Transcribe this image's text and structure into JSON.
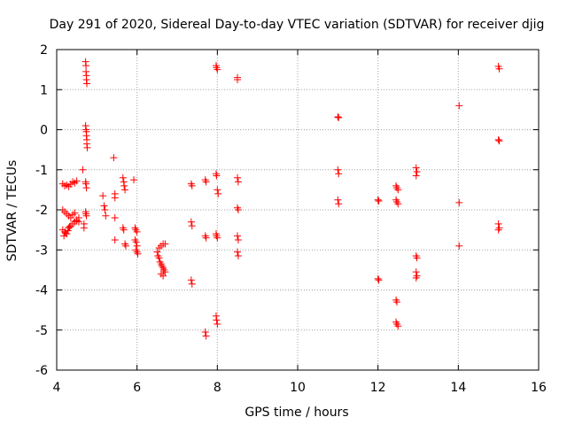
{
  "chart_data": {
    "type": "scatter",
    "title": "Day 291 of 2020, Sidereal Day-to-day VTEC variation (SDTVAR) for receiver djig",
    "xlabel": "GPS time / hours",
    "ylabel": "SDTVAR / TECUs",
    "xlim": [
      4,
      16
    ],
    "ylim": [
      -6,
      2
    ],
    "xticks": [
      4,
      6,
      8,
      10,
      12,
      14,
      16
    ],
    "yticks": [
      -6,
      -5,
      -4,
      -3,
      -2,
      -1,
      0,
      1,
      2
    ],
    "xtick_labels": [
      "4",
      "6",
      "8",
      "10",
      "12",
      "14",
      "16"
    ],
    "ytick_labels": [
      "-6",
      "-5",
      "-4",
      "-3",
      "-2",
      "-1",
      "0",
      "1",
      "2"
    ],
    "grid": true,
    "marker": "plus",
    "color": "#ff0000",
    "series": [
      {
        "name": "SDTVAR",
        "points": [
          [
            4.15,
            -1.35
          ],
          [
            4.2,
            -1.4
          ],
          [
            4.25,
            -1.38
          ],
          [
            4.3,
            -1.42
          ],
          [
            4.35,
            -1.36
          ],
          [
            4.4,
            -1.3
          ],
          [
            4.45,
            -1.33
          ],
          [
            4.5,
            -1.28
          ],
          [
            4.15,
            -2.0
          ],
          [
            4.2,
            -2.05
          ],
          [
            4.25,
            -2.1
          ],
          [
            4.3,
            -2.15
          ],
          [
            4.35,
            -2.2
          ],
          [
            4.4,
            -2.12
          ],
          [
            4.45,
            -2.08
          ],
          [
            4.5,
            -2.25
          ],
          [
            4.55,
            -2.3
          ],
          [
            4.15,
            -2.5
          ],
          [
            4.2,
            -2.55
          ],
          [
            4.25,
            -2.6
          ],
          [
            4.3,
            -2.45
          ],
          [
            4.35,
            -2.4
          ],
          [
            4.4,
            -2.35
          ],
          [
            4.45,
            -2.3
          ],
          [
            4.5,
            -2.28
          ],
          [
            4.55,
            -2.2
          ],
          [
            4.18,
            -2.65
          ],
          [
            4.22,
            -2.58
          ],
          [
            4.28,
            -2.52
          ],
          [
            4.32,
            -2.42
          ],
          [
            4.65,
            -1.0
          ],
          [
            4.68,
            -2.35
          ],
          [
            4.68,
            -2.45
          ],
          [
            4.72,
            1.7
          ],
          [
            4.73,
            1.6
          ],
          [
            4.73,
            1.45
          ],
          [
            4.74,
            1.35
          ],
          [
            4.74,
            1.25
          ],
          [
            4.75,
            1.15
          ],
          [
            4.72,
            0.1
          ],
          [
            4.73,
            0.0
          ],
          [
            4.74,
            -0.05
          ],
          [
            4.74,
            -0.15
          ],
          [
            4.75,
            -0.25
          ],
          [
            4.75,
            -0.35
          ],
          [
            4.76,
            -0.45
          ],
          [
            4.72,
            -1.3
          ],
          [
            4.73,
            -1.35
          ],
          [
            4.74,
            -1.45
          ],
          [
            4.72,
            -2.05
          ],
          [
            4.73,
            -2.1
          ],
          [
            4.74,
            -2.15
          ],
          [
            5.15,
            -1.65
          ],
          [
            5.18,
            -1.9
          ],
          [
            5.2,
            -2.0
          ],
          [
            5.22,
            -2.15
          ],
          [
            5.42,
            -0.7
          ],
          [
            5.45,
            -1.6
          ],
          [
            5.45,
            -1.7
          ],
          [
            5.45,
            -2.2
          ],
          [
            5.45,
            -2.75
          ],
          [
            5.65,
            -1.2
          ],
          [
            5.67,
            -1.3
          ],
          [
            5.68,
            -1.4
          ],
          [
            5.7,
            -1.5
          ],
          [
            5.65,
            -2.45
          ],
          [
            5.67,
            -2.5
          ],
          [
            5.7,
            -2.85
          ],
          [
            5.72,
            -2.9
          ],
          [
            5.92,
            -1.25
          ],
          [
            5.95,
            -2.45
          ],
          [
            5.97,
            -2.5
          ],
          [
            6.0,
            -2.55
          ],
          [
            5.95,
            -2.75
          ],
          [
            5.98,
            -2.8
          ],
          [
            6.0,
            -2.9
          ],
          [
            5.97,
            -3.0
          ],
          [
            6.0,
            -3.05
          ],
          [
            6.02,
            -3.1
          ],
          [
            6.5,
            -3.05
          ],
          [
            6.52,
            -3.15
          ],
          [
            6.55,
            -3.2
          ],
          [
            6.57,
            -3.3
          ],
          [
            6.6,
            -3.35
          ],
          [
            6.62,
            -3.4
          ],
          [
            6.65,
            -3.45
          ],
          [
            6.67,
            -3.5
          ],
          [
            6.7,
            -3.55
          ],
          [
            6.55,
            -2.95
          ],
          [
            6.6,
            -2.9
          ],
          [
            6.65,
            -2.85
          ],
          [
            6.7,
            -2.85
          ],
          [
            6.6,
            -3.6
          ],
          [
            6.65,
            -3.65
          ],
          [
            7.35,
            -1.35
          ],
          [
            7.37,
            -1.4
          ],
          [
            7.35,
            -2.3
          ],
          [
            7.37,
            -2.4
          ],
          [
            7.35,
            -3.75
          ],
          [
            7.37,
            -3.85
          ],
          [
            7.7,
            -1.25
          ],
          [
            7.72,
            -1.3
          ],
          [
            7.7,
            -2.65
          ],
          [
            7.72,
            -2.7
          ],
          [
            7.7,
            -5.05
          ],
          [
            7.72,
            -5.15
          ],
          [
            7.97,
            1.6
          ],
          [
            7.98,
            1.55
          ],
          [
            8.0,
            1.5
          ],
          [
            7.97,
            -1.1
          ],
          [
            7.98,
            -1.15
          ],
          [
            8.0,
            -1.5
          ],
          [
            8.02,
            -1.6
          ],
          [
            7.97,
            -2.6
          ],
          [
            7.98,
            -2.65
          ],
          [
            8.0,
            -2.7
          ],
          [
            7.97,
            -4.65
          ],
          [
            7.98,
            -4.75
          ],
          [
            8.0,
            -4.85
          ],
          [
            8.5,
            1.3
          ],
          [
            8.5,
            1.25
          ],
          [
            8.5,
            -1.2
          ],
          [
            8.52,
            -1.3
          ],
          [
            8.5,
            -1.95
          ],
          [
            8.52,
            -2.0
          ],
          [
            8.5,
            -2.65
          ],
          [
            8.52,
            -2.75
          ],
          [
            8.5,
            -3.05
          ],
          [
            8.52,
            -3.15
          ],
          [
            11.0,
            0.32
          ],
          [
            11.02,
            0.3
          ],
          [
            11.0,
            -1.0
          ],
          [
            11.02,
            -1.1
          ],
          [
            11.0,
            -1.75
          ],
          [
            11.02,
            -1.85
          ],
          [
            12.0,
            -1.75
          ],
          [
            12.02,
            -1.78
          ],
          [
            12.0,
            -3.72
          ],
          [
            12.02,
            -3.75
          ],
          [
            12.45,
            -1.4
          ],
          [
            12.47,
            -1.45
          ],
          [
            12.5,
            -1.5
          ],
          [
            12.45,
            -1.75
          ],
          [
            12.47,
            -1.8
          ],
          [
            12.5,
            -1.85
          ],
          [
            12.45,
            -4.25
          ],
          [
            12.47,
            -4.3
          ],
          [
            12.45,
            -4.8
          ],
          [
            12.47,
            -4.85
          ],
          [
            12.5,
            -4.9
          ],
          [
            12.95,
            -0.95
          ],
          [
            12.97,
            -1.05
          ],
          [
            12.95,
            -1.15
          ],
          [
            12.95,
            -3.15
          ],
          [
            12.97,
            -3.2
          ],
          [
            12.95,
            -3.55
          ],
          [
            12.97,
            -3.65
          ],
          [
            12.95,
            -3.7
          ],
          [
            14.02,
            0.6
          ],
          [
            14.02,
            -1.82
          ],
          [
            14.02,
            -2.9
          ],
          [
            15.0,
            1.58
          ],
          [
            15.02,
            1.52
          ],
          [
            15.0,
            -0.25
          ],
          [
            15.02,
            -0.28
          ],
          [
            15.0,
            -2.35
          ],
          [
            15.02,
            -2.45
          ],
          [
            15.0,
            -2.5
          ]
        ]
      }
    ]
  }
}
